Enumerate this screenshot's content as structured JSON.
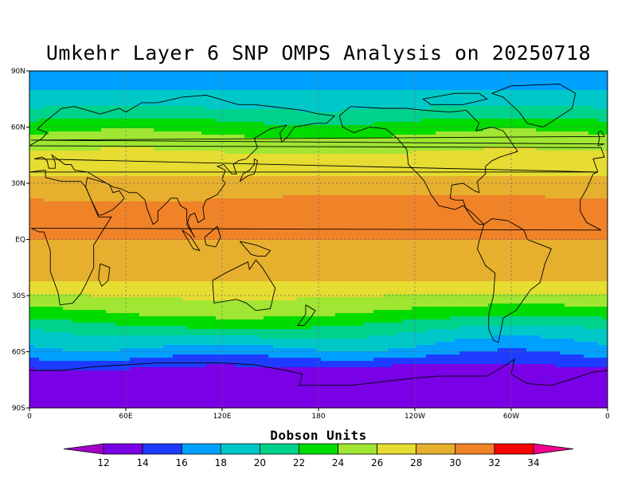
{
  "title": "Umkehr Layer 6 SNP OMPS Analysis on 20250718",
  "colorbar": {
    "title": "Dobson Units",
    "ticks": [
      "12",
      "14",
      "16",
      "18",
      "20",
      "22",
      "24",
      "26",
      "28",
      "30",
      "32",
      "34"
    ],
    "colors": [
      "#a000c8",
      "#7a00e6",
      "#1e3cff",
      "#00a0ff",
      "#00c8c8",
      "#00d28c",
      "#00dc00",
      "#a0e632",
      "#e6dc32",
      "#e6af2d",
      "#f08228",
      "#fa0000",
      "#f0008c"
    ]
  },
  "chart_data": {
    "type": "heatmap",
    "title": "Umkehr Layer 6 SNP OMPS Analysis on 20250718",
    "projection": "cylindrical-equidistant",
    "xlim": [
      0,
      360
    ],
    "ylim": [
      -90,
      90
    ],
    "x_tick_labels": [
      "0",
      "60E",
      "120E",
      "180",
      "120W",
      "60W",
      "0"
    ],
    "y_tick_labels": [
      "90S",
      "60S",
      "30S",
      "EQ",
      "30N",
      "60N",
      "90N"
    ],
    "units": "Dobson Units",
    "zonal_profile": [
      {
        "lat": 90,
        "value": 17
      },
      {
        "lat": 80,
        "value": 18
      },
      {
        "lat": 70,
        "value": 20
      },
      {
        "lat": 60,
        "value": 23
      },
      {
        "lat": 50,
        "value": 25.5
      },
      {
        "lat": 40,
        "value": 27
      },
      {
        "lat": 30,
        "value": 28.5
      },
      {
        "lat": 20,
        "value": 30.5
      },
      {
        "lat": 10,
        "value": 30.5
      },
      {
        "lat": 0,
        "value": 30
      },
      {
        "lat": -10,
        "value": 29.5
      },
      {
        "lat": -20,
        "value": 28.5
      },
      {
        "lat": -30,
        "value": 26
      },
      {
        "lat": -40,
        "value": 23.5
      },
      {
        "lat": -50,
        "value": 20
      },
      {
        "lat": -60,
        "value": 17
      },
      {
        "lat": -70,
        "value": 13.5
      },
      {
        "lat": -80,
        "value": 13
      },
      {
        "lat": -90,
        "value": 13
      }
    ],
    "grid": true,
    "grid_style": "dashed"
  }
}
